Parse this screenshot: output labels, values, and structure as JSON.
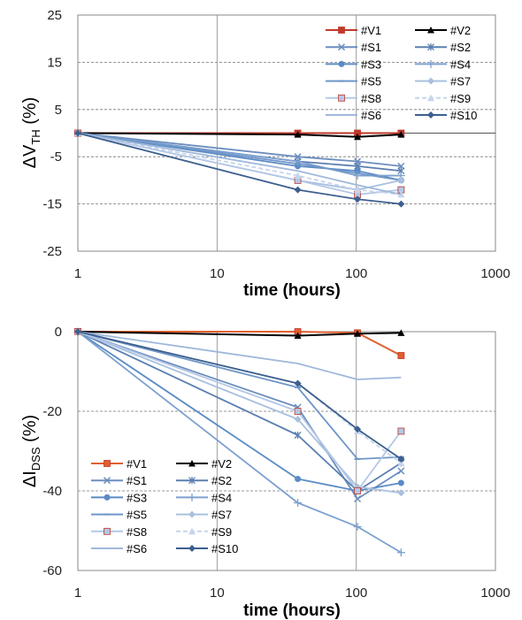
{
  "chart_data": [
    {
      "type": "line",
      "x_scale": "log",
      "xlim": [
        1,
        1000
      ],
      "ylim": [
        -25,
        25
      ],
      "x_ticks": [
        "1",
        "10",
        "100",
        "1000"
      ],
      "y_ticks": [
        "25",
        "15",
        "5",
        "-5",
        "-15",
        "-25"
      ],
      "xlabel": "time (hours)",
      "ylabel_main": "ΔV",
      "ylabel_sub": "TH",
      "ylabel_unit": " (%)",
      "grid": "dashed horizontal, solid vertical at decades",
      "legend_position": "top-right",
      "series": [
        {
          "name": "#V1",
          "x": [
            1,
            38,
            102,
            210
          ],
          "values": [
            0,
            0,
            0,
            0
          ],
          "color": "#c0392b",
          "marker": "square",
          "dash": ""
        },
        {
          "name": "#V2",
          "x": [
            1,
            38,
            102,
            210
          ],
          "values": [
            0,
            -0.3,
            -0.8,
            -0.3
          ],
          "color": "#000000",
          "marker": "triangle",
          "dash": ""
        },
        {
          "name": "#S1",
          "x": [
            1,
            38,
            102,
            210
          ],
          "values": [
            0,
            -5,
            -6,
            -7
          ],
          "color": "#6c8ebf",
          "marker": "x",
          "dash": ""
        },
        {
          "name": "#S2",
          "x": [
            1,
            38,
            102,
            210
          ],
          "values": [
            0,
            -6,
            -7,
            -8
          ],
          "color": "#5a7fb0",
          "marker": "star",
          "dash": ""
        },
        {
          "name": "#S3",
          "x": [
            1,
            38,
            102,
            210
          ],
          "values": [
            0,
            -7,
            -8,
            -10
          ],
          "color": "#5b8bc4",
          "marker": "circle",
          "dash": ""
        },
        {
          "name": "#S4",
          "x": [
            1,
            38,
            102,
            210
          ],
          "values": [
            0,
            -6,
            -9,
            -9
          ],
          "color": "#7da0cf",
          "marker": "plus",
          "dash": ""
        },
        {
          "name": "#S5",
          "x": [
            1,
            38,
            102,
            210
          ],
          "values": [
            0,
            -6.5,
            -8.5,
            -10
          ],
          "color": "#6f96c8",
          "marker": "dash",
          "dash": ""
        },
        {
          "name": "#S7",
          "x": [
            1,
            38,
            102,
            210
          ],
          "values": [
            0,
            -10,
            -12,
            -10
          ],
          "color": "#a9c0de",
          "marker": "diamond",
          "dash": ""
        },
        {
          "name": "#S8",
          "x": [
            1,
            38,
            102,
            210
          ],
          "values": [
            0,
            -10,
            -13,
            -12
          ],
          "color": "#b4c7e7",
          "marker": "square",
          "dash": ""
        },
        {
          "name": "#S9",
          "x": [
            1,
            38,
            102,
            210
          ],
          "values": [
            0,
            -9,
            -12,
            -13
          ],
          "color": "#c5d5ec",
          "marker": "triangle",
          "dash": "5,3"
        },
        {
          "name": "#S6",
          "x": [
            1,
            38,
            102,
            210
          ],
          "values": [
            0,
            -8,
            -11,
            -13
          ],
          "color": "#9fb8db",
          "marker": "none",
          "dash": ""
        },
        {
          "name": "#S10",
          "x": [
            1,
            38,
            102,
            210
          ],
          "values": [
            0,
            -12,
            -14,
            -15
          ],
          "color": "#3d5f8e",
          "marker": "diamond",
          "dash": ""
        }
      ]
    },
    {
      "type": "line",
      "x_scale": "log",
      "xlim": [
        1,
        1000
      ],
      "ylim": [
        -60,
        0
      ],
      "x_ticks": [
        "1",
        "10",
        "100",
        "1000"
      ],
      "y_ticks": [
        "0",
        "-20",
        "-40",
        "-60"
      ],
      "xlabel": "time (hours)",
      "ylabel_main": "ΔI",
      "ylabel_sub": "DSS",
      "ylabel_unit": " (%)",
      "grid": "dashed horizontal, solid vertical at decades",
      "legend_position": "bottom-left",
      "series": [
        {
          "name": "#V1",
          "x": [
            1,
            38,
            102,
            210
          ],
          "values": [
            0,
            0,
            -0.3,
            -6
          ],
          "color": "#e06030",
          "marker": "square",
          "dash": ""
        },
        {
          "name": "#V2",
          "x": [
            1,
            38,
            102,
            210
          ],
          "values": [
            0,
            -1,
            -0.5,
            -0.3
          ],
          "color": "#000000",
          "marker": "triangle",
          "dash": ""
        },
        {
          "name": "#S1",
          "x": [
            1,
            38,
            102,
            210
          ],
          "values": [
            0,
            -19,
            -42,
            -35
          ],
          "color": "#6c8ebf",
          "marker": "x",
          "dash": ""
        },
        {
          "name": "#S2",
          "x": [
            1,
            38,
            102,
            210
          ],
          "values": [
            0,
            -26,
            -40,
            -33
          ],
          "color": "#5a7fb0",
          "marker": "star",
          "dash": ""
        },
        {
          "name": "#S3",
          "x": [
            1,
            38,
            102,
            210
          ],
          "values": [
            0,
            -37,
            -40,
            -38
          ],
          "color": "#5b8bc4",
          "marker": "circle",
          "dash": ""
        },
        {
          "name": "#S4",
          "x": [
            1,
            38,
            102,
            210
          ],
          "values": [
            0,
            -43,
            -49,
            -55.5
          ],
          "color": "#7da0cf",
          "marker": "plus",
          "dash": ""
        },
        {
          "name": "#S5",
          "x": [
            1,
            38,
            102,
            210
          ],
          "values": [
            0,
            -14,
            -32,
            -31.5
          ],
          "color": "#6f96c8",
          "marker": "dash",
          "dash": ""
        },
        {
          "name": "#S7",
          "x": [
            1,
            38,
            102,
            210
          ],
          "values": [
            0,
            -22,
            -39,
            -40.5
          ],
          "color": "#a9c0de",
          "marker": "diamond",
          "dash": ""
        },
        {
          "name": "#S8",
          "x": [
            1,
            38,
            102,
            210
          ],
          "values": [
            0,
            -20,
            -40,
            -25
          ],
          "color": "#b4c7e7",
          "marker": "square",
          "dash": ""
        },
        {
          "name": "#S9",
          "x": [
            1,
            38,
            102,
            210
          ],
          "values": [
            0,
            -13,
            -25,
            -33
          ],
          "color": "#c5d5ec",
          "marker": "triangle",
          "dash": "5,3"
        },
        {
          "name": "#S6",
          "x": [
            1,
            38,
            102,
            210
          ],
          "values": [
            0,
            -8,
            -12,
            -11.5
          ],
          "color": "#9fb8db",
          "marker": "none",
          "dash": ""
        },
        {
          "name": "#S10",
          "x": [
            1,
            38,
            102,
            210
          ],
          "values": [
            0,
            -13,
            -24.5,
            -32
          ],
          "color": "#3d5f8e",
          "marker": "diamond",
          "dash": ""
        }
      ]
    }
  ]
}
